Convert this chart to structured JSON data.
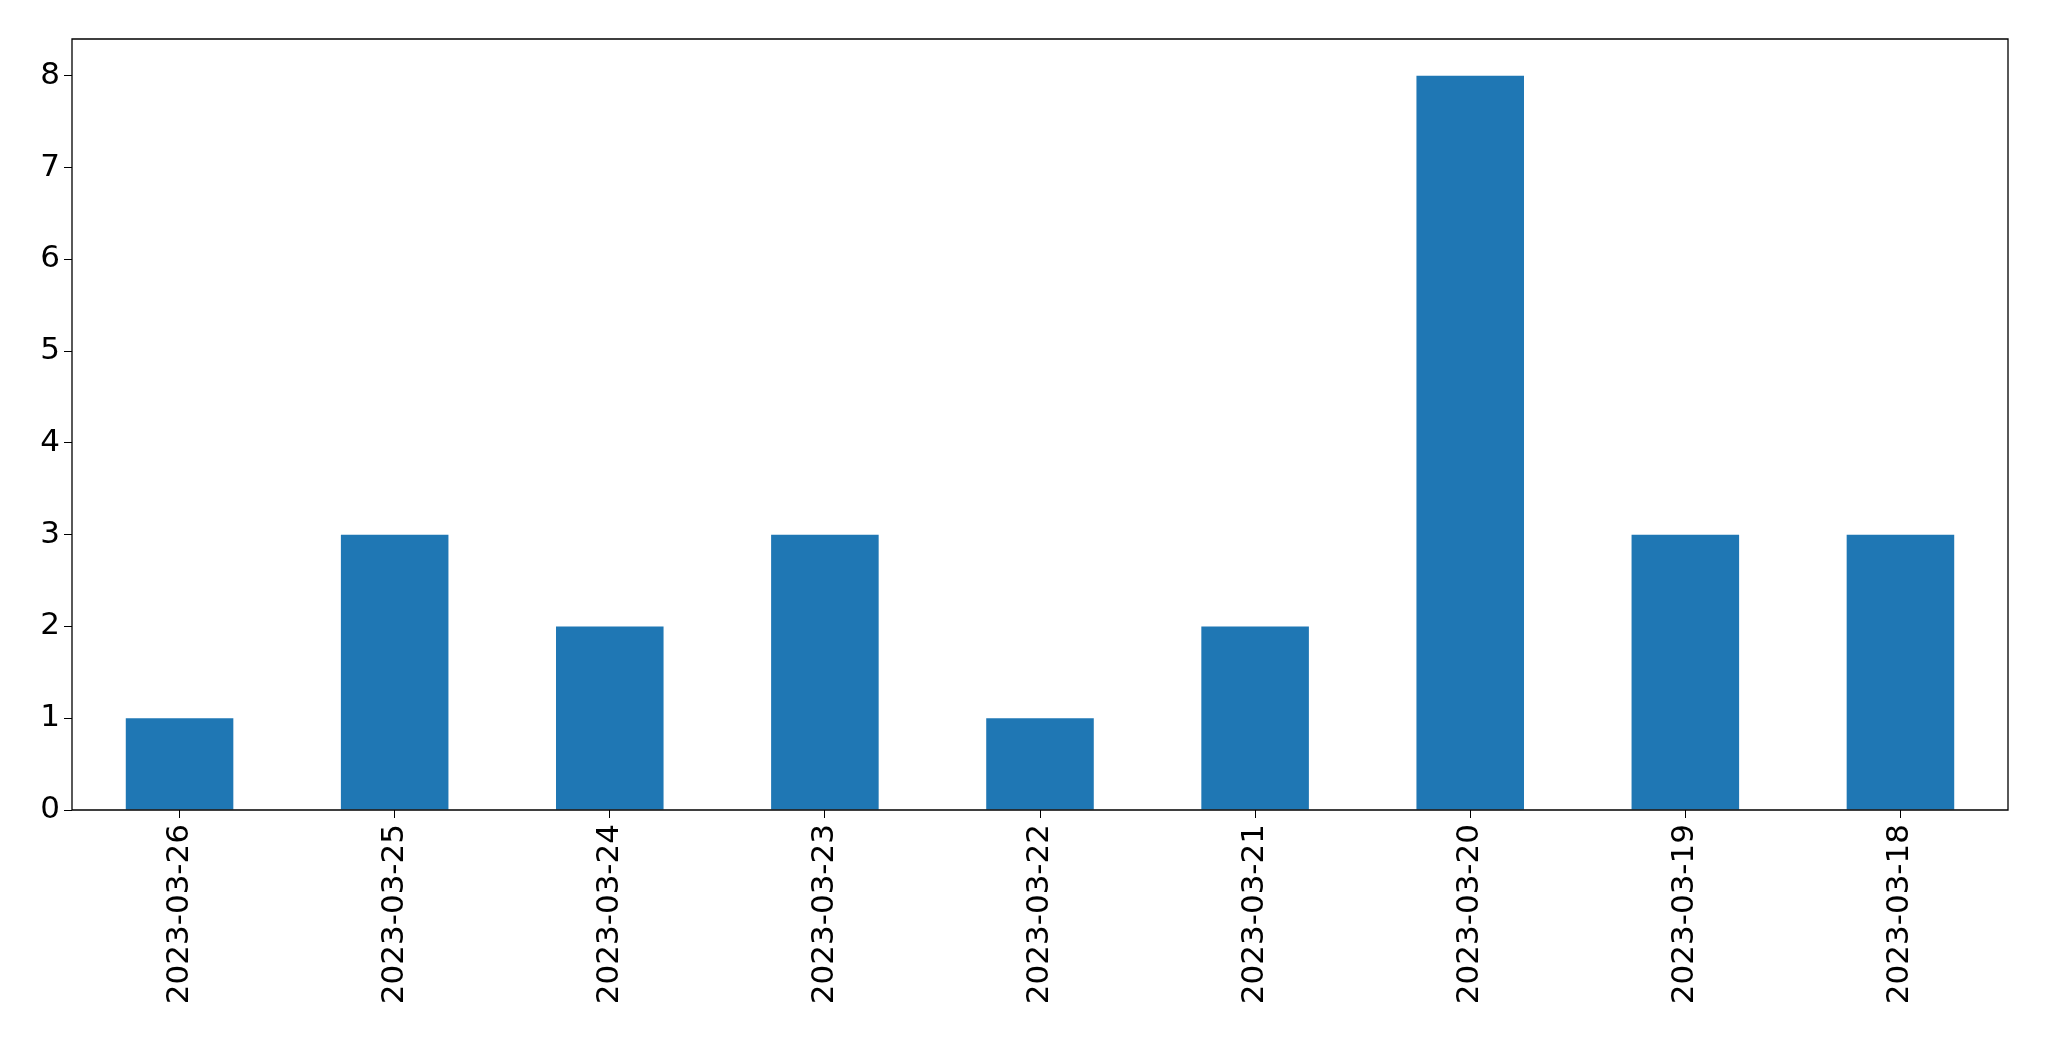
{
  "chart_data": {
    "type": "bar",
    "categories": [
      "2023-03-26",
      "2023-03-25",
      "2023-03-24",
      "2023-03-23",
      "2023-03-22",
      "2023-03-21",
      "2023-03-20",
      "2023-03-19",
      "2023-03-18"
    ],
    "values": [
      1,
      3,
      2,
      3,
      1,
      2,
      8,
      3,
      3
    ],
    "color": "#1f77b4",
    "ylim": [
      0,
      8.4
    ],
    "yticks": [
      0,
      1,
      2,
      3,
      4,
      5,
      6,
      7,
      8
    ],
    "grid": false,
    "legend": false
  }
}
